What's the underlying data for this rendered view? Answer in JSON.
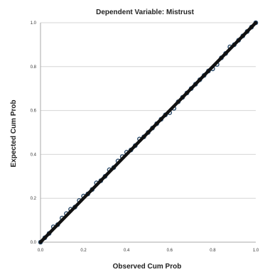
{
  "chart_data": {
    "type": "scatter",
    "title": "Dependent Variable: Mistrust",
    "xlabel": "Observed Cum Prob",
    "ylabel": "Expected Cum Prob",
    "xlim": [
      0.0,
      1.0
    ],
    "ylim": [
      0.0,
      1.0
    ],
    "x_ticks": [
      "0.0",
      "0.2",
      "0.4",
      "0.6",
      "0.8",
      "1.0"
    ],
    "y_ticks": [
      "0.0",
      "0.2",
      "0.4",
      "0.6",
      "0.8",
      "1.0"
    ],
    "x_tick_values": [
      0.0,
      0.2,
      0.4,
      0.6,
      0.8,
      1.0
    ],
    "y_tick_values": [
      0.0,
      0.2,
      0.4,
      0.6,
      0.8,
      1.0
    ],
    "grid": "horizontal",
    "reference_line": {
      "from": [
        0.0,
        0.0
      ],
      "to": [
        1.0,
        1.0
      ]
    },
    "series": [
      {
        "points": [
          [
            0.0,
            0.0
          ],
          [
            0.02,
            0.02
          ],
          [
            0.04,
            0.04
          ],
          [
            0.06,
            0.07
          ],
          [
            0.08,
            0.08
          ],
          [
            0.1,
            0.11
          ],
          [
            0.12,
            0.13
          ],
          [
            0.14,
            0.15
          ],
          [
            0.16,
            0.16
          ],
          [
            0.18,
            0.19
          ],
          [
            0.2,
            0.21
          ],
          [
            0.22,
            0.22
          ],
          [
            0.24,
            0.24
          ],
          [
            0.26,
            0.27
          ],
          [
            0.28,
            0.28
          ],
          [
            0.3,
            0.3
          ],
          [
            0.32,
            0.33
          ],
          [
            0.34,
            0.34
          ],
          [
            0.36,
            0.37
          ],
          [
            0.38,
            0.39
          ],
          [
            0.4,
            0.41
          ],
          [
            0.42,
            0.42
          ],
          [
            0.44,
            0.44
          ],
          [
            0.46,
            0.47
          ],
          [
            0.48,
            0.48
          ],
          [
            0.5,
            0.5
          ],
          [
            0.52,
            0.52
          ],
          [
            0.54,
            0.54
          ],
          [
            0.56,
            0.56
          ],
          [
            0.58,
            0.58
          ],
          [
            0.6,
            0.59
          ],
          [
            0.62,
            0.61
          ],
          [
            0.64,
            0.64
          ],
          [
            0.66,
            0.66
          ],
          [
            0.68,
            0.68
          ],
          [
            0.7,
            0.7
          ],
          [
            0.72,
            0.72
          ],
          [
            0.74,
            0.74
          ],
          [
            0.76,
            0.76
          ],
          [
            0.78,
            0.78
          ],
          [
            0.8,
            0.79
          ],
          [
            0.82,
            0.81
          ],
          [
            0.84,
            0.84
          ],
          [
            0.86,
            0.86
          ],
          [
            0.88,
            0.89
          ],
          [
            0.9,
            0.9
          ],
          [
            0.92,
            0.92
          ],
          [
            0.94,
            0.94
          ],
          [
            0.96,
            0.96
          ],
          [
            0.98,
            0.98
          ],
          [
            1.0,
            1.0
          ]
        ]
      }
    ],
    "colors": {
      "points": "#2a4a6a",
      "reference_line": "#111111",
      "grid": "#d6d6d6",
      "axis": "#aaaaaa"
    }
  }
}
